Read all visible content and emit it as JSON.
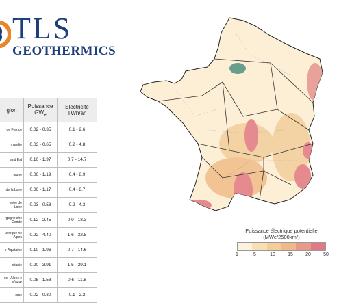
{
  "logo": {
    "name": "TLS",
    "subtitle": "GEOTHERMICS"
  },
  "table": {
    "headers": {
      "region": "gion",
      "power": "Puissance GWe",
      "electricity": "Electricité TWh/an"
    },
    "rows": [
      {
        "region": "de France",
        "power": "0.02 - 0.35",
        "electricity": "0.1 -  2.6"
      },
      {
        "region": "mandie",
        "power": "0.03 - 0.65",
        "electricity": "0.2 -  4.8"
      },
      {
        "region": "and Est",
        "power": "0.10 - 1.97",
        "electricity": "0.7 - 14.7"
      },
      {
        "region": "tagne",
        "power": "0.06 - 1.19",
        "electricity": "0.4 -  8.9"
      },
      {
        "region": "de la Loire",
        "power": "0.06 - 1.17",
        "electricity": "0.4 -  8.7"
      },
      {
        "region": "entre de Loire",
        "power": "0.03 - 0.58",
        "electricity": "0.2 -  4.3"
      },
      {
        "region": "rgogne che Comté",
        "power": "0.12 - 2.45",
        "electricity": "0.9 - 18.3"
      },
      {
        "region": "uvergne ne Alpes",
        "power": "0.22 - 4.40",
        "electricity": "1.6 - 32.8"
      },
      {
        "region": "e-Aquitaine",
        "power": "0.10 - 1.96",
        "electricity": "0.7 - 14.6"
      },
      {
        "region": "citanie",
        "power": "0.20 - 3.91",
        "electricity": "1.5 - 29.1"
      },
      {
        "region": "ce - Alpes e d'Azur",
        "power": "0.08 - 1.58",
        "electricity": "0.6 - 11.8"
      },
      {
        "region": "orse",
        "power": "0.02 - 0.30",
        "electricity": "0.1 -  2.2"
      }
    ]
  },
  "legend": {
    "title": "Puissance électrique potentielle",
    "unit": "(MWe/2500km²)",
    "ticks": [
      "1",
      "5",
      "10",
      "15",
      "20",
      "50"
    ],
    "colors": [
      "#fdf3dc",
      "#f9dfb4",
      "#f5cd98",
      "#efb98a",
      "#e89a8a",
      "#e07a84"
    ]
  },
  "colors": {
    "brand": "#1f3f7a",
    "accent": "#e8872a",
    "hot": "#e58a8f",
    "warm": "#f3c998",
    "base": "#fcefd6"
  }
}
